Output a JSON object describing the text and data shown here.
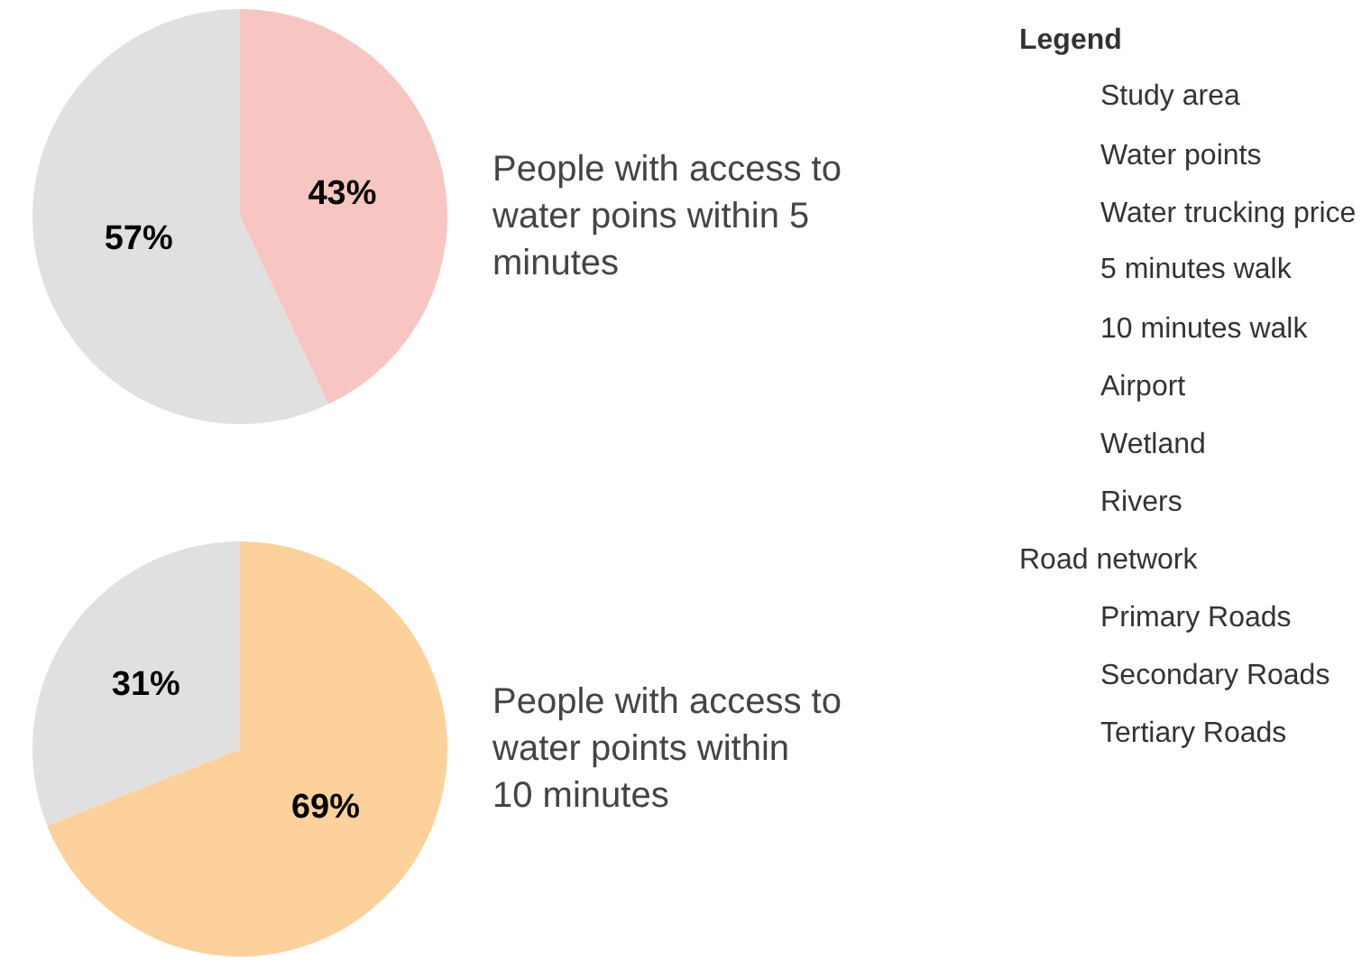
{
  "chart_data": [
    {
      "type": "pie",
      "title": "People with access to water poins within 5 minutes",
      "categories": [
        null,
        null
      ],
      "values": [
        43,
        57
      ],
      "value_labels": [
        "43%",
        "57%"
      ],
      "colors": [
        "#f8c6c2",
        "#e0e0e0"
      ]
    },
    {
      "type": "pie",
      "title": "People with access to water points within 10 minutes",
      "categories": [
        null,
        null
      ],
      "values": [
        69,
        31
      ],
      "value_labels": [
        "69%",
        "31%"
      ],
      "colors": [
        "#fdd19c",
        "#e0e0e0"
      ]
    },
    {
      "type": "other",
      "title": "Legend",
      "annotations": [
        "Study area",
        "Water points",
        "Water trucking price",
        "5 minutes walk",
        "10 minutes walk",
        "Airport",
        "Wetland",
        "Rivers"
      ]
    },
    {
      "type": "other",
      "title": "Road network",
      "annotations": [
        "Primary Roads",
        "Secondary Roads",
        "Tertiary Roads"
      ]
    }
  ]
}
